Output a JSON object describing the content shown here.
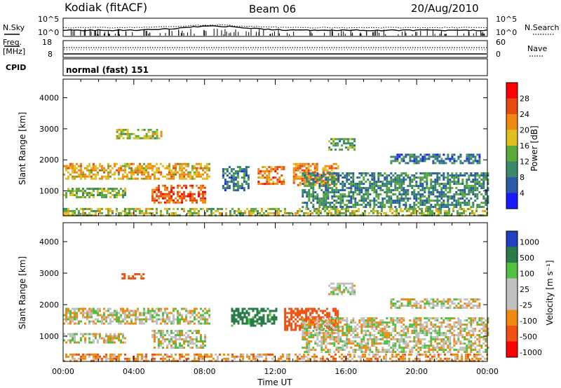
{
  "header": {
    "station": "Kodiak (fitACF)",
    "beam": "Beam 06",
    "date": "20/Aug/2010"
  },
  "top_panel": {
    "left_label": "N.Sky",
    "right_label": "N.Search",
    "left_ticks": [
      "10^5",
      "10^0"
    ],
    "right_ticks": [
      "10^5",
      "10^0"
    ]
  },
  "freq_panel": {
    "left_label_1": "Freq.",
    "left_label_2": "[MHz]",
    "right_label": "Nave",
    "left_ticks": [
      "18",
      "8"
    ],
    "right_ticks": [
      "60",
      "0"
    ]
  },
  "cpid": {
    "label": "CPID",
    "value": "normal (fast) 151"
  },
  "colors": {
    "power_scale": [
      "#1a1aff",
      "#2a5aa8",
      "#3a8a6a",
      "#5aaa3a",
      "#e0c020",
      "#f08a10",
      "#e84a10",
      "#ff0000"
    ],
    "velocity_scale": [
      "#ff0000",
      "#f05010",
      "#f08a10",
      "#c0c0c0",
      "#c0c0c0",
      "#50c040",
      "#2a7a4a",
      "#2040c0"
    ],
    "background": "#ffffff"
  },
  "chart_data": [
    {
      "type": "heatmap",
      "panel": "power",
      "title": "",
      "xlabel": "Time UT",
      "ylabel": "Slant Range [km]",
      "xlim": [
        "00:00",
        "24:00"
      ],
      "ylim": [
        200,
        4600
      ],
      "x_tick_labels": [
        "00:00",
        "04:00",
        "08:00",
        "12:00",
        "16:00",
        "20:00",
        "00:00"
      ],
      "y_tick_labels": [
        "1000",
        "2000",
        "3000",
        "4000"
      ],
      "colorbar_label": "Power [dB]",
      "colorbar_ticks": [
        "4",
        "8",
        "12",
        "16",
        "20",
        "24",
        "28"
      ],
      "regions": [
        {
          "t0": 0.0,
          "t1": 8.3,
          "r0": 1400,
          "r1": 1900,
          "level": 22
        },
        {
          "t0": 0.0,
          "t1": 3.5,
          "r0": 800,
          "r1": 1100,
          "level": 16
        },
        {
          "t0": 5.0,
          "t1": 8.0,
          "r0": 600,
          "r1": 1200,
          "level": 27
        },
        {
          "t0": 3.0,
          "t1": 5.5,
          "r0": 2700,
          "r1": 3000,
          "level": 18
        },
        {
          "t0": 11.0,
          "t1": 12.5,
          "r0": 1200,
          "r1": 1800,
          "level": 26
        },
        {
          "t0": 13.0,
          "t1": 15.5,
          "r0": 1200,
          "r1": 1900,
          "level": 24
        },
        {
          "t0": 9.0,
          "t1": 10.5,
          "r0": 1000,
          "r1": 1800,
          "level": 10
        },
        {
          "t0": 13.5,
          "t1": 24.0,
          "r0": 500,
          "r1": 1600,
          "level": 12
        },
        {
          "t0": 18.5,
          "t1": 23.5,
          "r0": 1900,
          "r1": 2200,
          "level": 10
        },
        {
          "t0": 15.0,
          "t1": 16.5,
          "r0": 2300,
          "r1": 2700,
          "level": 14
        },
        {
          "t0": 0.0,
          "t1": 24.0,
          "r0": 200,
          "r1": 450,
          "level": 18
        }
      ]
    },
    {
      "type": "heatmap",
      "panel": "velocity",
      "title": "",
      "xlabel": "Time UT",
      "ylabel": "Slant Range [km]",
      "xlim": [
        "00:00",
        "24:00"
      ],
      "ylim": [
        200,
        4600
      ],
      "x_tick_labels": [
        "00:00",
        "04:00",
        "08:00",
        "12:00",
        "16:00",
        "20:00",
        "00:00"
      ],
      "y_tick_labels": [
        "1000",
        "2000",
        "3000",
        "4000"
      ],
      "colorbar_label": "Velocity [m s⁻¹]",
      "colorbar_ticks": [
        "1000",
        "500",
        "100",
        "25",
        "-25",
        "-100",
        "-500",
        "-1000"
      ],
      "regions": [
        {
          "t0": 0.0,
          "t1": 8.3,
          "r0": 1400,
          "r1": 1900,
          "velocity": 0
        },
        {
          "t0": 0.0,
          "t1": 3.5,
          "r0": 800,
          "r1": 1100,
          "velocity": 0
        },
        {
          "t0": 5.0,
          "t1": 8.0,
          "r0": 600,
          "r1": 1200,
          "velocity": 0
        },
        {
          "t0": 3.3,
          "t1": 4.5,
          "r0": 2800,
          "r1": 3000,
          "velocity": -150
        },
        {
          "t0": 9.5,
          "t1": 12.0,
          "r0": 1300,
          "r1": 1900,
          "velocity": 150
        },
        {
          "t0": 12.5,
          "t1": 15.5,
          "r0": 1200,
          "r1": 1900,
          "velocity": -200
        },
        {
          "t0": 13.5,
          "t1": 24.0,
          "r0": 500,
          "r1": 1600,
          "velocity": 0
        },
        {
          "t0": 18.5,
          "t1": 23.5,
          "r0": 1900,
          "r1": 2200,
          "velocity": 0
        },
        {
          "t0": 15.0,
          "t1": 16.5,
          "r0": 2300,
          "r1": 2700,
          "velocity": 0
        },
        {
          "t0": 0.0,
          "t1": 24.0,
          "r0": 200,
          "r1": 450,
          "velocity": -60
        }
      ]
    }
  ],
  "x_axis_label": "Time UT"
}
